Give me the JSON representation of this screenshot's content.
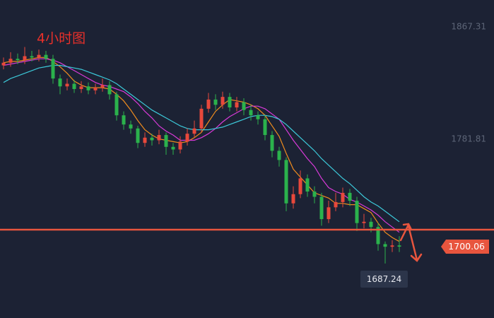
{
  "chart_data": {
    "type": "candlestick",
    "title": "4小时图",
    "ylim": [
      1645.77,
      1887.74
    ],
    "yticks": [
      1867.31,
      1781.81
    ],
    "up_color": "#e8483b",
    "down_color": "#2bb24c",
    "candles": {
      "open": [
        1838,
        1840,
        1843,
        1842,
        1845,
        1844,
        1846,
        1843,
        1828,
        1822,
        1824,
        1820,
        1822,
        1819,
        1821,
        1823,
        1816,
        1800,
        1793,
        1790,
        1779,
        1783,
        1781,
        1785,
        1776,
        1774,
        1780,
        1786,
        1790,
        1805,
        1812,
        1808,
        1814,
        1806,
        1810,
        1804,
        1800,
        1797,
        1785,
        1773,
        1766,
        1733,
        1740,
        1752,
        1742,
        1738,
        1721,
        1730,
        1734,
        1741,
        1735,
        1718,
        1719,
        1715,
        1702,
        1700,
        1701
      ],
      "high": [
        1844,
        1848,
        1847,
        1852,
        1849,
        1850,
        1849,
        1846,
        1831,
        1828,
        1827,
        1826,
        1825,
        1824,
        1828,
        1826,
        1818,
        1803,
        1796,
        1792,
        1787,
        1786,
        1789,
        1787,
        1779,
        1784,
        1790,
        1796,
        1808,
        1817,
        1816,
        1818,
        1817,
        1814,
        1813,
        1808,
        1803,
        1800,
        1788,
        1776,
        1768,
        1746,
        1758,
        1755,
        1746,
        1741,
        1735,
        1741,
        1745,
        1744,
        1738,
        1725,
        1722,
        1718,
        1704,
        1705,
        1708
      ],
      "low": [
        1835,
        1837,
        1839,
        1839,
        1841,
        1841,
        1840,
        1824,
        1816,
        1819,
        1817,
        1817,
        1816,
        1816,
        1818,
        1812,
        1796,
        1789,
        1786,
        1775,
        1776,
        1777,
        1778,
        1770,
        1770,
        1771,
        1777,
        1783,
        1787,
        1802,
        1804,
        1805,
        1803,
        1803,
        1800,
        1796,
        1793,
        1781,
        1768,
        1761,
        1727,
        1729,
        1737,
        1738,
        1733,
        1716,
        1718,
        1727,
        1730,
        1731,
        1712,
        1714,
        1711,
        1697,
        1687.24,
        1696,
        1696
      ],
      "close": [
        1840,
        1843,
        1842,
        1845,
        1844,
        1846,
        1843,
        1828,
        1822,
        1824,
        1820,
        1822,
        1819,
        1821,
        1823,
        1816,
        1800,
        1793,
        1790,
        1779,
        1783,
        1781,
        1785,
        1776,
        1774,
        1780,
        1786,
        1790,
        1805,
        1812,
        1808,
        1814,
        1806,
        1810,
        1804,
        1800,
        1797,
        1785,
        1773,
        1766,
        1733,
        1740,
        1752,
        1742,
        1738,
        1721,
        1730,
        1734,
        1741,
        1735,
        1718,
        1719,
        1715,
        1702,
        1700,
        1701,
        1700.06
      ]
    },
    "series": [
      {
        "color": "#f08c1e",
        "values": [
          1840,
          1841,
          1841,
          1842,
          1843,
          1844,
          1844,
          1841,
          1837,
          1832,
          1826,
          1823,
          1821,
          1821,
          1821,
          1820,
          1816,
          1811,
          1804,
          1796,
          1789,
          1785,
          1782,
          1781,
          1780,
          1779,
          1780,
          1783,
          1787,
          1795,
          1803,
          1808,
          1812,
          1811,
          1810,
          1808,
          1805,
          1800,
          1792,
          1784,
          1771,
          1759,
          1753,
          1747,
          1741,
          1739,
          1737,
          1733,
          1733,
          1732,
          1732,
          1729,
          1726,
          1718,
          1711,
          1707,
          1704
        ]
      },
      {
        "color": "#d83ad8",
        "values": [
          1838,
          1839,
          1840,
          1841,
          1842,
          1843,
          1843,
          1842,
          1840,
          1837,
          1834,
          1831,
          1828,
          1825,
          1823,
          1822,
          1820,
          1818,
          1814,
          1809,
          1803,
          1798,
          1792,
          1788,
          1785,
          1781,
          1781,
          1781,
          1783,
          1786,
          1790,
          1795,
          1799,
          1802,
          1805,
          1807,
          1807,
          1805,
          1801,
          1797,
          1789,
          1781,
          1774,
          1767,
          1761,
          1752,
          1745,
          1742,
          1740,
          1736,
          1734,
          1731,
          1728,
          1724,
          1719,
          1715,
          1711
        ]
      },
      {
        "color": "#3cc8d8",
        "values": [
          1825,
          1828,
          1830,
          1832,
          1834,
          1836,
          1837,
          1838,
          1838,
          1837,
          1836,
          1835,
          1833,
          1831,
          1829,
          1827,
          1824,
          1820,
          1816,
          1812,
          1808,
          1804,
          1801,
          1798,
          1795,
          1792,
          1790,
          1789,
          1789,
          1789,
          1790,
          1791,
          1793,
          1795,
          1797,
          1799,
          1800,
          1800,
          1799,
          1797,
          1793,
          1788,
          1783,
          1778,
          1773,
          1767,
          1762,
          1757,
          1752,
          1748,
          1743,
          1738,
          1734,
          1731,
          1727,
          1723,
          1719
        ]
      }
    ],
    "hline": 1713,
    "hline_color": "#e8553e"
  }
}
